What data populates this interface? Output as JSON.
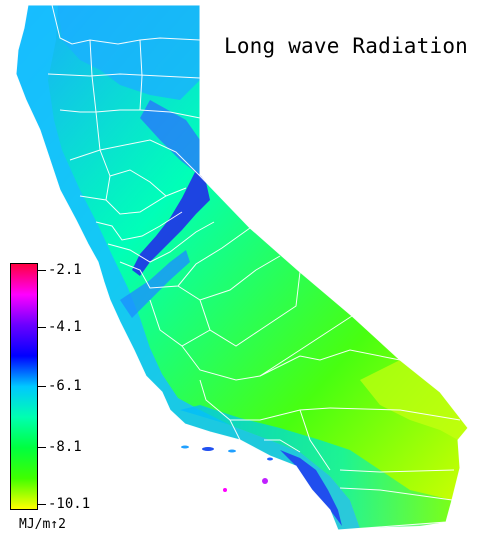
{
  "map": {
    "title": "Long wave Radiation",
    "region": "California",
    "variable": "Long wave Radiation"
  },
  "legend": {
    "unit": "MJ/m↑2",
    "ticks": [
      "-2.1",
      "-4.1",
      "-6.1",
      "-8.1",
      "-10.1"
    ],
    "colors": [
      "#ff0040",
      "#ff00ff",
      "#6a00ff",
      "#0000ff",
      "#00c8ff",
      "#00ffb0",
      "#00ff40",
      "#40ff00",
      "#ffff00"
    ]
  },
  "colors": {
    "coast_fill": "#14c8ff",
    "central_fill": "#00ff8c",
    "desert_fill": "#7aff20",
    "mountain_fill": "#2a60ff",
    "sierra_dark": "#1020e0",
    "boundary": "#ffffff"
  }
}
